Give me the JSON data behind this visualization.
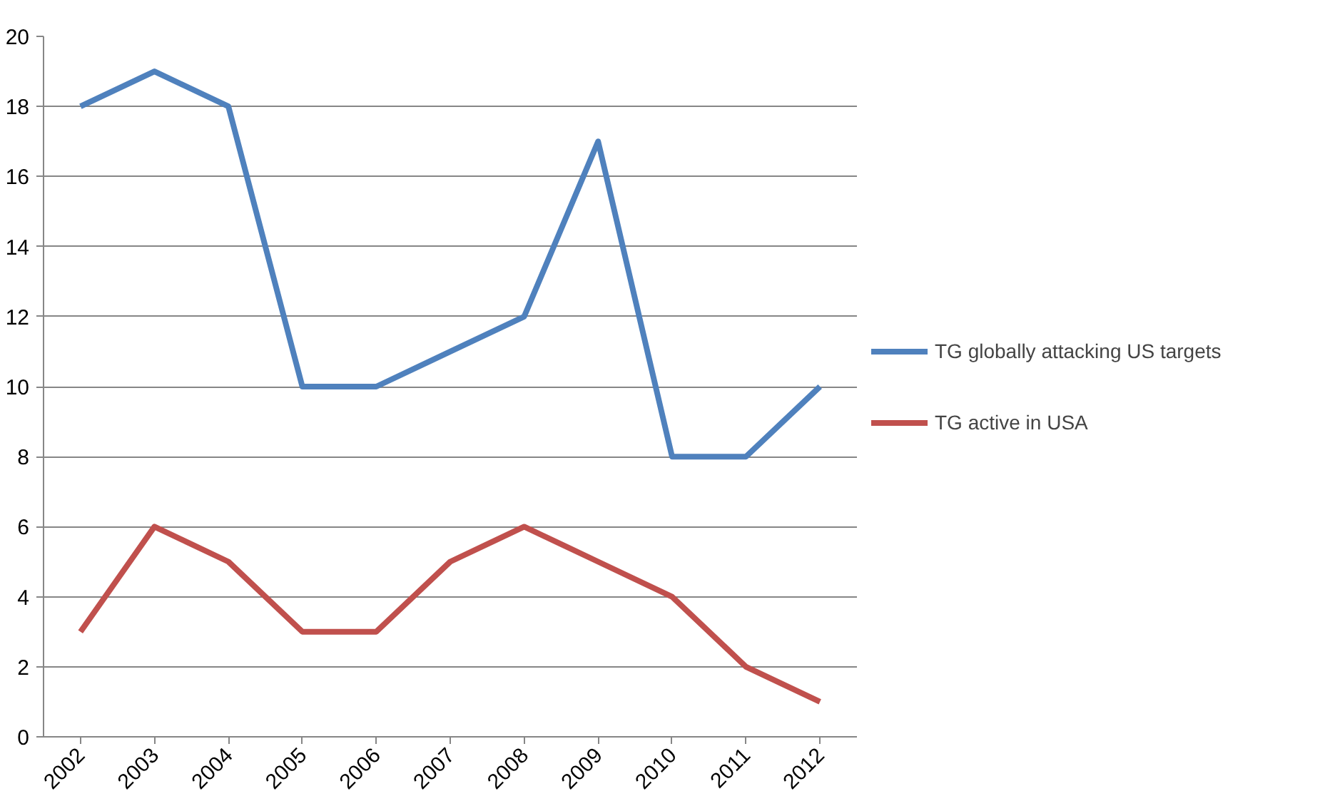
{
  "chart_data": {
    "type": "line",
    "categories": [
      "2002",
      "2003",
      "2004",
      "2005",
      "2006",
      "2007",
      "2008",
      "2009",
      "2010",
      "2011",
      "2012"
    ],
    "series": [
      {
        "name": "TG globally attacking US targets",
        "color": "#4f81bd",
        "values": [
          18,
          19,
          18,
          10,
          10,
          11,
          12,
          17,
          8,
          8,
          10
        ]
      },
      {
        "name": "TG active in USA",
        "color": "#c0504d",
        "values": [
          3,
          6,
          5,
          3,
          3,
          5,
          6,
          5,
          4,
          2,
          1
        ]
      }
    ],
    "ylim": [
      0,
      20
    ],
    "yticks": [
      0,
      2,
      4,
      6,
      8,
      10,
      12,
      14,
      16,
      18,
      20
    ],
    "grid": "y",
    "legend": "right",
    "marker": "none",
    "line_style": "solid"
  }
}
